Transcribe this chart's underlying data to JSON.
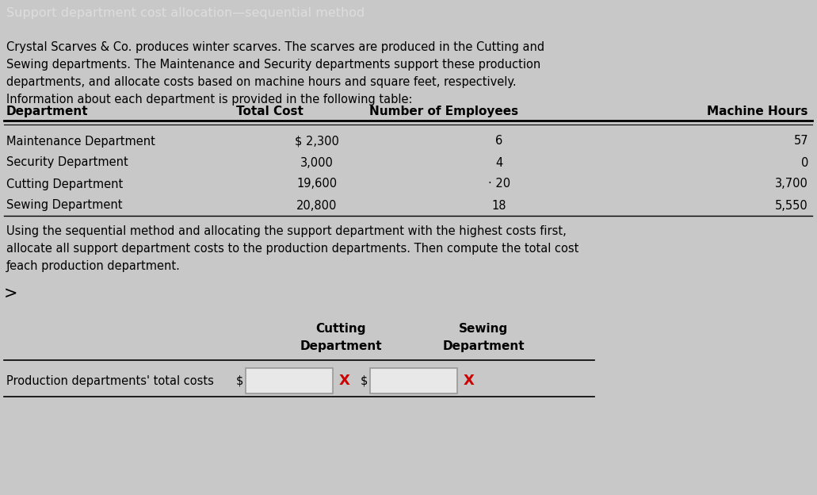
{
  "title": "Support department cost allocation—sequential method",
  "title_bg_color": "#7a7a7a",
  "title_text_color": "#dddddd",
  "bg_color": "#c8c8c8",
  "body_text": [
    "Crystal Scarves & Co. produces winter scarves. The scarves are produced in the Cutting and",
    "Sewing departments. The Maintenance and Security departments support these production",
    "departments, and allocate costs based on machine hours and square feet, respectively.",
    "Information about each department is provided in the following table:"
  ],
  "table_headers": [
    "Department",
    "Total Cost",
    "Number of Employees",
    "Machine Hours"
  ],
  "table_rows": [
    [
      "Maintenance Department",
      "$ 2,300",
      "6",
      "57"
    ],
    [
      "Security Department",
      "3,000",
      "4",
      "0"
    ],
    [
      "Cutting Department",
      "19,600",
      "· 20",
      "3,700"
    ],
    [
      "Sewing Department",
      "20,800",
      "18",
      "5,550"
    ]
  ],
  "bottom_text": [
    "Using the sequential method and allocating the support department with the highest costs first,",
    "allocate all support department costs to the production departments. Then compute the total cost",
    "ƒeach production department."
  ],
  "col1_label": "Cutting",
  "col1_label2": "Department",
  "col2_label": "Sewing",
  "col2_label2": "Department",
  "row_label": "Production departments' total costs",
  "dollar_sign": "$",
  "x_color": "#cc0000",
  "input_box_color": "#e8e8e8",
  "input_box_border": "#999999",
  "fig_width": 10.31,
  "fig_height": 6.24,
  "dpi": 100
}
